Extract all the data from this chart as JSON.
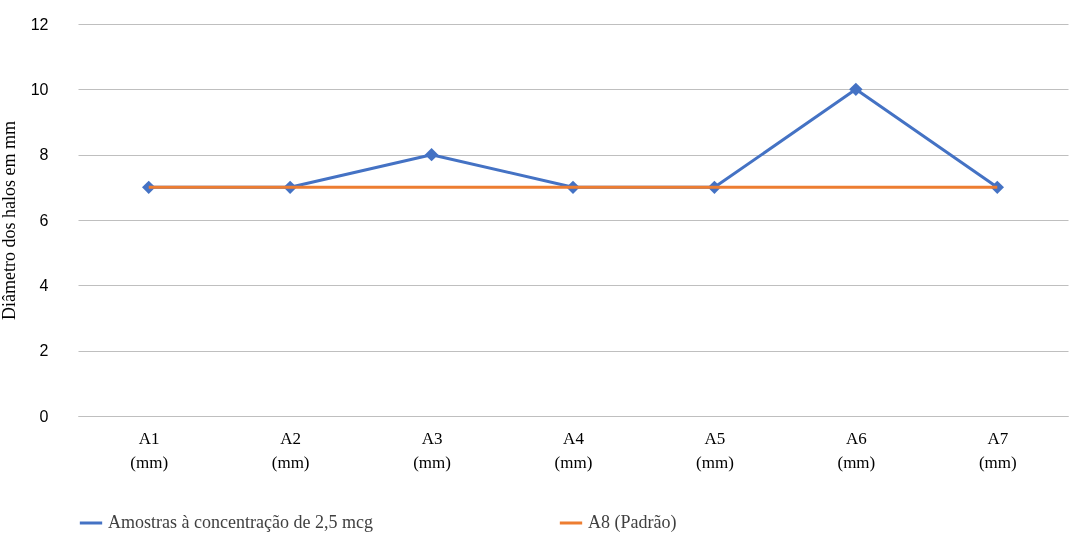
{
  "chart_data": {
    "type": "line",
    "ylabel": "Diâmetro dos halos em mm",
    "categories": [
      "A1 (mm)",
      "A2 (mm)",
      "A3 (mm)",
      "A4 (mm)",
      "A5 (mm)",
      "A6 (mm)",
      "A7 (mm)"
    ],
    "series": [
      {
        "name": "Amostras à concentração de 2,5 mcg",
        "color": "#4472c4",
        "marker": "diamond",
        "values": [
          7,
          7,
          8,
          7,
          7,
          10,
          7
        ]
      },
      {
        "name": "A8 (Padrão)",
        "color": "#ed7d31",
        "marker": "none",
        "values": [
          7,
          7,
          7,
          7,
          7,
          7,
          7
        ]
      }
    ],
    "ylim": [
      0,
      12
    ],
    "yticks": [
      0,
      2,
      4,
      6,
      8,
      10,
      12
    ],
    "grid": "y",
    "legend": "bottom",
    "line_style": "solid"
  }
}
